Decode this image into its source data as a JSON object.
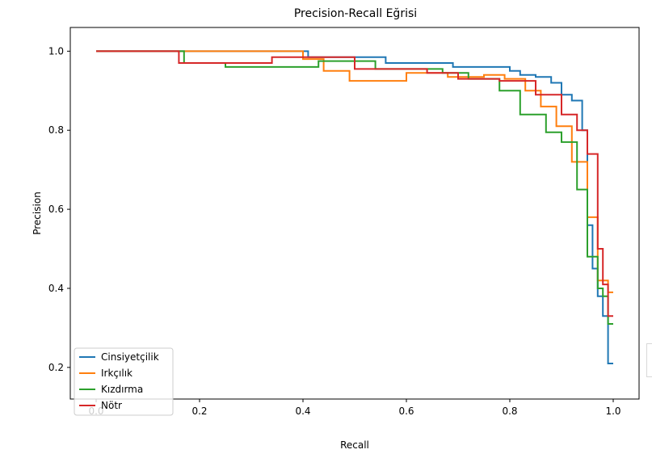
{
  "chart_data": {
    "type": "line",
    "title": "Precision-Recall Eğrisi",
    "xlabel": "Recall",
    "ylabel": "Precision",
    "xlim": [
      -0.05,
      1.05
    ],
    "ylim": [
      0.12,
      1.06
    ],
    "xticks": [
      0.0,
      0.2,
      0.4,
      0.6,
      0.8,
      1.0
    ],
    "xtick_labels": [
      "0.0",
      "0.2",
      "0.4",
      "0.6",
      "0.8",
      "1.0"
    ],
    "yticks": [
      0.2,
      0.4,
      0.6,
      0.8,
      1.0
    ],
    "ytick_labels": [
      "0.2",
      "0.4",
      "0.6",
      "0.8",
      "1.0"
    ],
    "grid": false,
    "legend_position": "lower-left",
    "series": [
      {
        "name": "Cinsiyetçilik",
        "color": "#1f77b4",
        "x": [
          0.0,
          0.41,
          0.41,
          0.56,
          0.56,
          0.69,
          0.69,
          0.8,
          0.8,
          0.82,
          0.82,
          0.85,
          0.85,
          0.88,
          0.88,
          0.9,
          0.9,
          0.92,
          0.92,
          0.94,
          0.94,
          0.95,
          0.95,
          0.96,
          0.96,
          0.97,
          0.97,
          0.98,
          0.98,
          0.99,
          0.99,
          1.0
        ],
        "y": [
          1.0,
          1.0,
          0.985,
          0.985,
          0.97,
          0.97,
          0.96,
          0.96,
          0.95,
          0.95,
          0.94,
          0.94,
          0.935,
          0.935,
          0.92,
          0.92,
          0.89,
          0.89,
          0.875,
          0.875,
          0.8,
          0.8,
          0.56,
          0.56,
          0.45,
          0.45,
          0.38,
          0.38,
          0.33,
          0.33,
          0.21,
          0.21
        ]
      },
      {
        "name": "Irkçılık",
        "color": "#ff7f0e",
        "x": [
          0.0,
          0.4,
          0.4,
          0.44,
          0.44,
          0.49,
          0.49,
          0.6,
          0.6,
          0.68,
          0.68,
          0.75,
          0.75,
          0.79,
          0.79,
          0.83,
          0.83,
          0.86,
          0.86,
          0.89,
          0.89,
          0.92,
          0.92,
          0.95,
          0.95,
          0.97,
          0.97,
          0.99,
          0.99,
          1.0
        ],
        "y": [
          1.0,
          1.0,
          0.98,
          0.98,
          0.95,
          0.95,
          0.925,
          0.925,
          0.945,
          0.945,
          0.935,
          0.935,
          0.94,
          0.94,
          0.93,
          0.93,
          0.9,
          0.9,
          0.86,
          0.86,
          0.81,
          0.81,
          0.72,
          0.72,
          0.58,
          0.58,
          0.42,
          0.42,
          0.39,
          0.39
        ]
      },
      {
        "name": "Kızdırma",
        "color": "#2ca02c",
        "x": [
          0.0,
          0.17,
          0.17,
          0.25,
          0.25,
          0.43,
          0.43,
          0.54,
          0.54,
          0.67,
          0.67,
          0.72,
          0.72,
          0.78,
          0.78,
          0.82,
          0.82,
          0.87,
          0.87,
          0.9,
          0.9,
          0.93,
          0.93,
          0.95,
          0.95,
          0.97,
          0.97,
          0.98,
          0.98,
          0.99,
          0.99,
          1.0
        ],
        "y": [
          1.0,
          1.0,
          0.97,
          0.97,
          0.96,
          0.96,
          0.975,
          0.975,
          0.955,
          0.955,
          0.945,
          0.945,
          0.93,
          0.93,
          0.9,
          0.9,
          0.84,
          0.84,
          0.795,
          0.795,
          0.77,
          0.77,
          0.65,
          0.65,
          0.48,
          0.48,
          0.4,
          0.4,
          0.38,
          0.38,
          0.31,
          0.31
        ]
      },
      {
        "name": "Nötr",
        "color": "#d62728",
        "x": [
          0.0,
          0.16,
          0.16,
          0.34,
          0.34,
          0.5,
          0.5,
          0.64,
          0.64,
          0.7,
          0.7,
          0.78,
          0.78,
          0.85,
          0.85,
          0.9,
          0.9,
          0.93,
          0.93,
          0.95,
          0.95,
          0.97,
          0.97,
          0.98,
          0.98,
          0.99,
          0.99,
          1.0
        ],
        "y": [
          1.0,
          1.0,
          0.97,
          0.97,
          0.985,
          0.985,
          0.955,
          0.955,
          0.945,
          0.945,
          0.93,
          0.93,
          0.925,
          0.925,
          0.89,
          0.89,
          0.84,
          0.84,
          0.8,
          0.8,
          0.74,
          0.74,
          0.5,
          0.5,
          0.41,
          0.41,
          0.33,
          0.33
        ]
      }
    ]
  }
}
